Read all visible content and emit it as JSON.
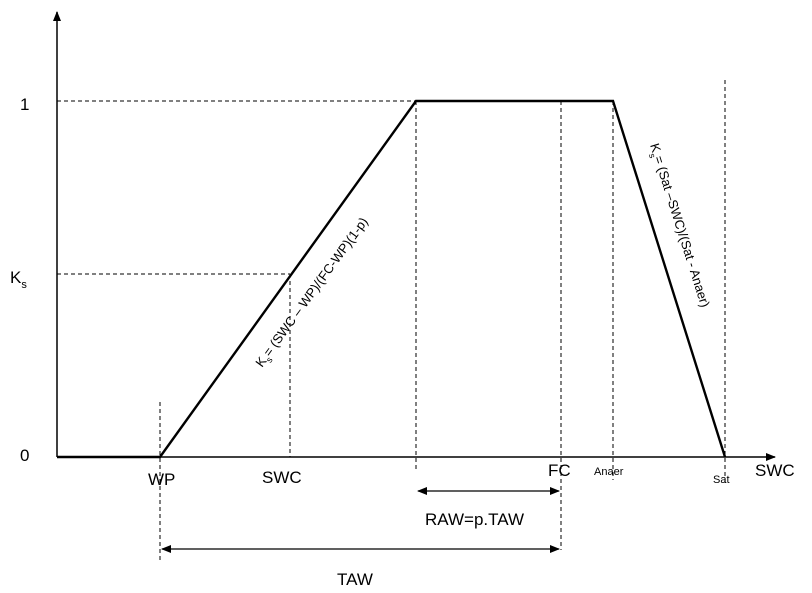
{
  "diagram": {
    "y_axis": {
      "tick_one": "1",
      "tick_zero": "0",
      "ks_label": "K",
      "ks_sub": "s"
    },
    "x_axis": {
      "label": "SWC",
      "wp": "WP",
      "swc": "SWC",
      "fc": "FC",
      "anaer": "Anaer",
      "sat": "Sat"
    },
    "formulas": {
      "rising_k": "K",
      "rising_sub": "s",
      "rising_rest": "= (SWC – WP)/(FC-WP)(1-p)",
      "falling_k": "K",
      "falling_sub": "s",
      "falling_rest": "= (Sat –SWC)/(Sat - Anaer)"
    },
    "dimensions": {
      "raw": "RAW=p.TAW",
      "taw": "TAW"
    }
  }
}
